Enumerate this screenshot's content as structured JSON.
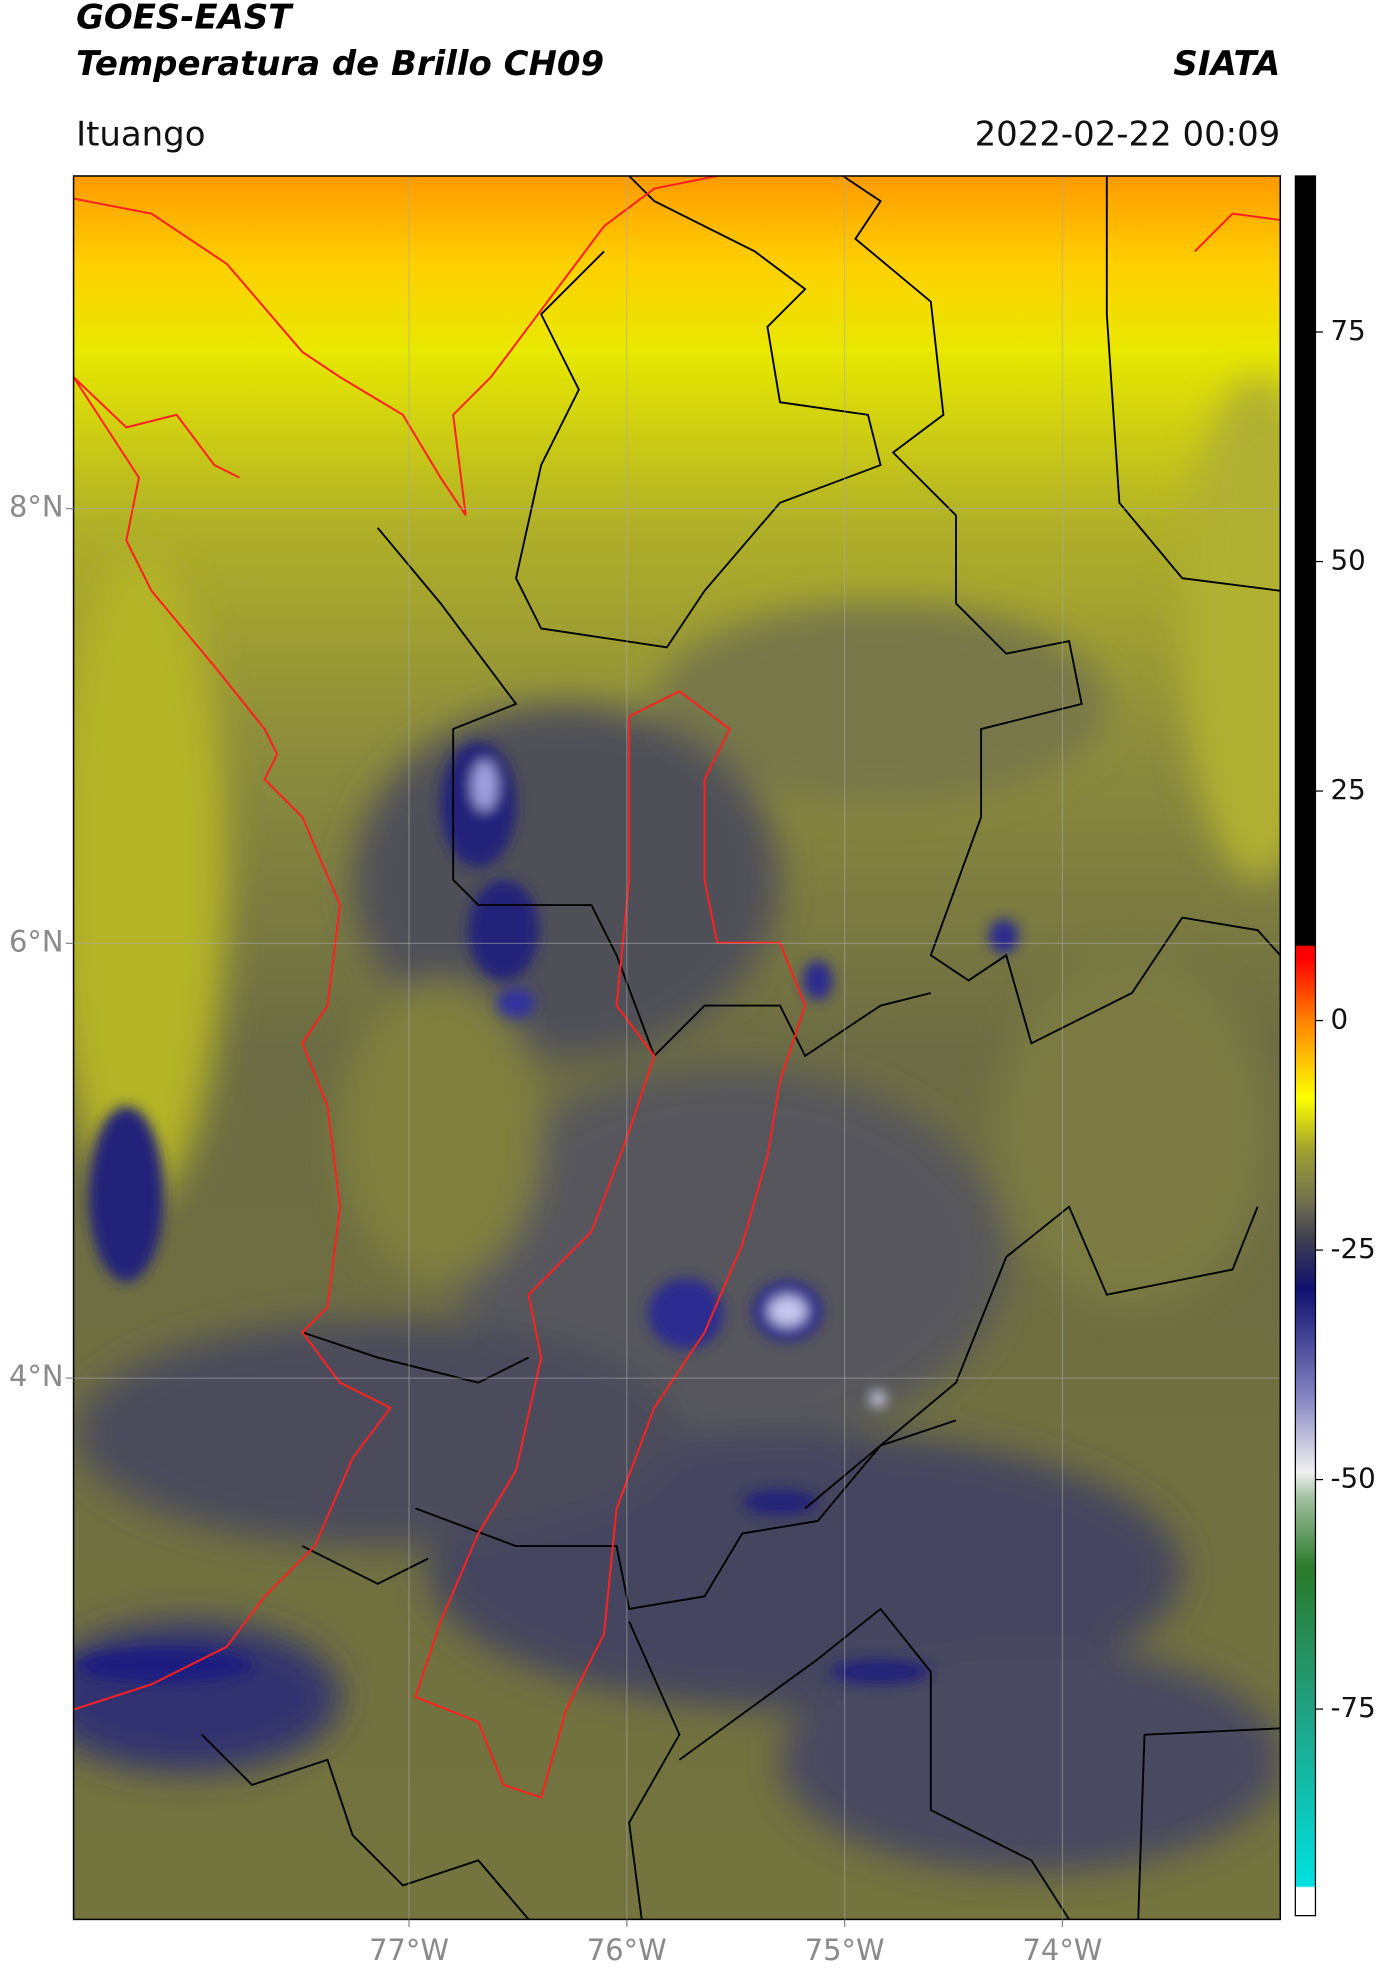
{
  "header": {
    "title": "GOES-EAST",
    "subtitle": "Temperatura de Brillo CH09",
    "brand": "SIATA",
    "location": "Ituango",
    "datetime": "2022-02-22 00:09"
  },
  "map": {
    "latlim": [
      1.51,
      9.53
    ],
    "lonlim": [
      -78.54,
      -73.0
    ],
    "lat_ticks": [
      {
        "value": 8,
        "label": "8°N"
      },
      {
        "value": 6,
        "label": "6°N"
      },
      {
        "value": 4,
        "label": "4°N"
      }
    ],
    "lon_ticks": [
      {
        "value": -77,
        "label": "77°W"
      },
      {
        "value": -76,
        "label": "76°W"
      },
      {
        "value": -75,
        "label": "75°W"
      },
      {
        "value": -74,
        "label": "74°W"
      }
    ],
    "grid": true
  },
  "colorbar": {
    "range": [
      -97.5,
      92
    ],
    "ticks": [
      75,
      50,
      25,
      0,
      -25,
      -50,
      -75
    ]
  }
}
